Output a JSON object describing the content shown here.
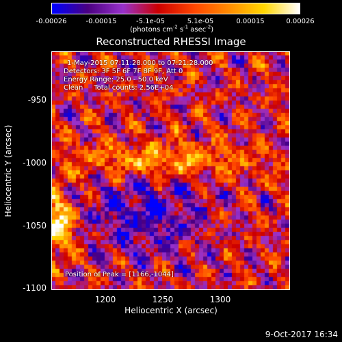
{
  "colorbar": {
    "tick_labels": [
      "-0.00026",
      "-0.00015",
      "-5.1e-05",
      "5.1e-05",
      "0.00015",
      "0.00026"
    ],
    "units_prefix": "(photons cm",
    "units_exp1": "-2",
    "units_mid1": " s",
    "units_exp2": "-1",
    "units_mid2": " asec",
    "units_exp3": "-2",
    "units_suffix": ")",
    "range": [
      -0.00026,
      0.00026
    ]
  },
  "title": "Reconstructed RHESSI Image",
  "overlay": {
    "time_range": "1-May-2015 07:11:28.000 to 07:21:28.000",
    "detectors": "Detectors: 3F 5F 6F 7F 8F 9F, Att 0",
    "energy": "Energy Range: 25.0 - 50.0 keV",
    "method_total": "Clean     Total counts: 2.56E+04",
    "peak": "Position of Peak = [1166,-1044]"
  },
  "axes": {
    "y_label": "Heliocentric Y (arcsec)",
    "x_label": "Heliocentric X (arcsec)",
    "y_ticks": [
      "-950",
      "-1000",
      "-1050",
      "-1100"
    ],
    "x_ticks": [
      "1200",
      "1250",
      "1300"
    ],
    "x_range": [
      1160,
      1350
    ],
    "y_range": [
      -1100,
      -910
    ]
  },
  "footer": {
    "date": "9-Oct-2017 16:34"
  },
  "colors": {
    "colormap": [
      "#0000ff",
      "#4b0082",
      "#9932cc",
      "#cc0000",
      "#ff4500",
      "#ff8c00",
      "#ffd700",
      "#ffffff"
    ]
  }
}
